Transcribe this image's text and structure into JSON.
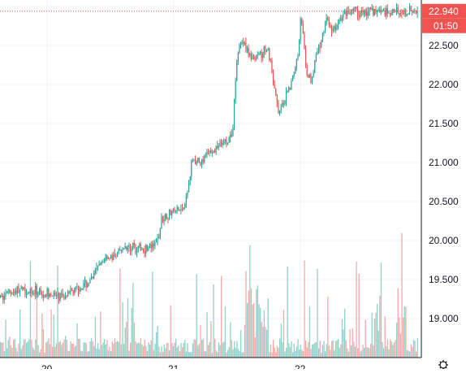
{
  "chart_data": {
    "type": "candlestick",
    "y_axis_ticks": [
      "22.500",
      "22.000",
      "21.500",
      "21.000",
      "20.500",
      "20.000",
      "19.500",
      "19.000"
    ],
    "y_tick_values": [
      22.5,
      22.0,
      21.5,
      21.0,
      20.5,
      20.0,
      19.5,
      19.0
    ],
    "ylim": [
      18.55,
      23.07
    ],
    "x_axis_ticks": [
      "20",
      "21",
      "22"
    ],
    "x_tick_positions_day": [
      20,
      21,
      22
    ],
    "xlim_day": [
      19.64,
      22.97
    ],
    "last_price": "22.940",
    "countdown": "01:50",
    "grid": true,
    "colors": {
      "up": "#26a69a",
      "down": "#ef5350",
      "up_volume": "#8fd1cb",
      "down_volume": "#f7a9a7",
      "grid": "#f0f3fa",
      "price_line": "#ef5350",
      "axis_line": "#131722"
    },
    "price_path": [
      [
        19.64,
        19.27
      ],
      [
        19.72,
        19.35
      ],
      [
        19.8,
        19.37
      ],
      [
        19.88,
        19.33
      ],
      [
        19.94,
        19.35
      ],
      [
        20.0,
        19.33
      ],
      [
        20.08,
        19.27
      ],
      [
        20.14,
        19.28
      ],
      [
        20.2,
        19.35
      ],
      [
        20.28,
        19.42
      ],
      [
        20.34,
        19.48
      ],
      [
        20.4,
        19.65
      ],
      [
        20.46,
        19.8
      ],
      [
        20.52,
        19.78
      ],
      [
        20.58,
        19.86
      ],
      [
        20.64,
        19.92
      ],
      [
        20.7,
        19.9
      ],
      [
        20.78,
        19.9
      ],
      [
        20.84,
        19.92
      ],
      [
        20.88,
        20.05
      ],
      [
        20.9,
        20.28
      ],
      [
        20.94,
        20.33
      ],
      [
        21.0,
        20.38
      ],
      [
        21.06,
        20.4
      ],
      [
        21.1,
        20.55
      ],
      [
        21.14,
        21.05
      ],
      [
        21.18,
        21.0
      ],
      [
        21.22,
        21.0
      ],
      [
        21.26,
        21.1
      ],
      [
        21.3,
        21.18
      ],
      [
        21.34,
        21.2
      ],
      [
        21.38,
        21.25
      ],
      [
        21.42,
        21.25
      ],
      [
        21.46,
        21.35
      ],
      [
        21.5,
        22.45
      ],
      [
        21.54,
        22.55
      ],
      [
        21.58,
        22.4
      ],
      [
        21.62,
        22.35
      ],
      [
        21.66,
        22.38
      ],
      [
        21.7,
        22.4
      ],
      [
        21.74,
        22.45
      ],
      [
        21.78,
        22.05
      ],
      [
        21.82,
        21.65
      ],
      [
        21.86,
        21.75
      ],
      [
        21.9,
        21.9
      ],
      [
        21.94,
        22.1
      ],
      [
        21.98,
        22.42
      ],
      [
        22.0,
        22.95
      ],
      [
        22.04,
        22.2
      ],
      [
        22.08,
        22.05
      ],
      [
        22.12,
        22.35
      ],
      [
        22.16,
        22.55
      ],
      [
        22.2,
        22.85
      ],
      [
        22.24,
        22.7
      ],
      [
        22.28,
        22.75
      ],
      [
        22.32,
        22.85
      ],
      [
        22.36,
        22.94
      ]
    ]
  }
}
